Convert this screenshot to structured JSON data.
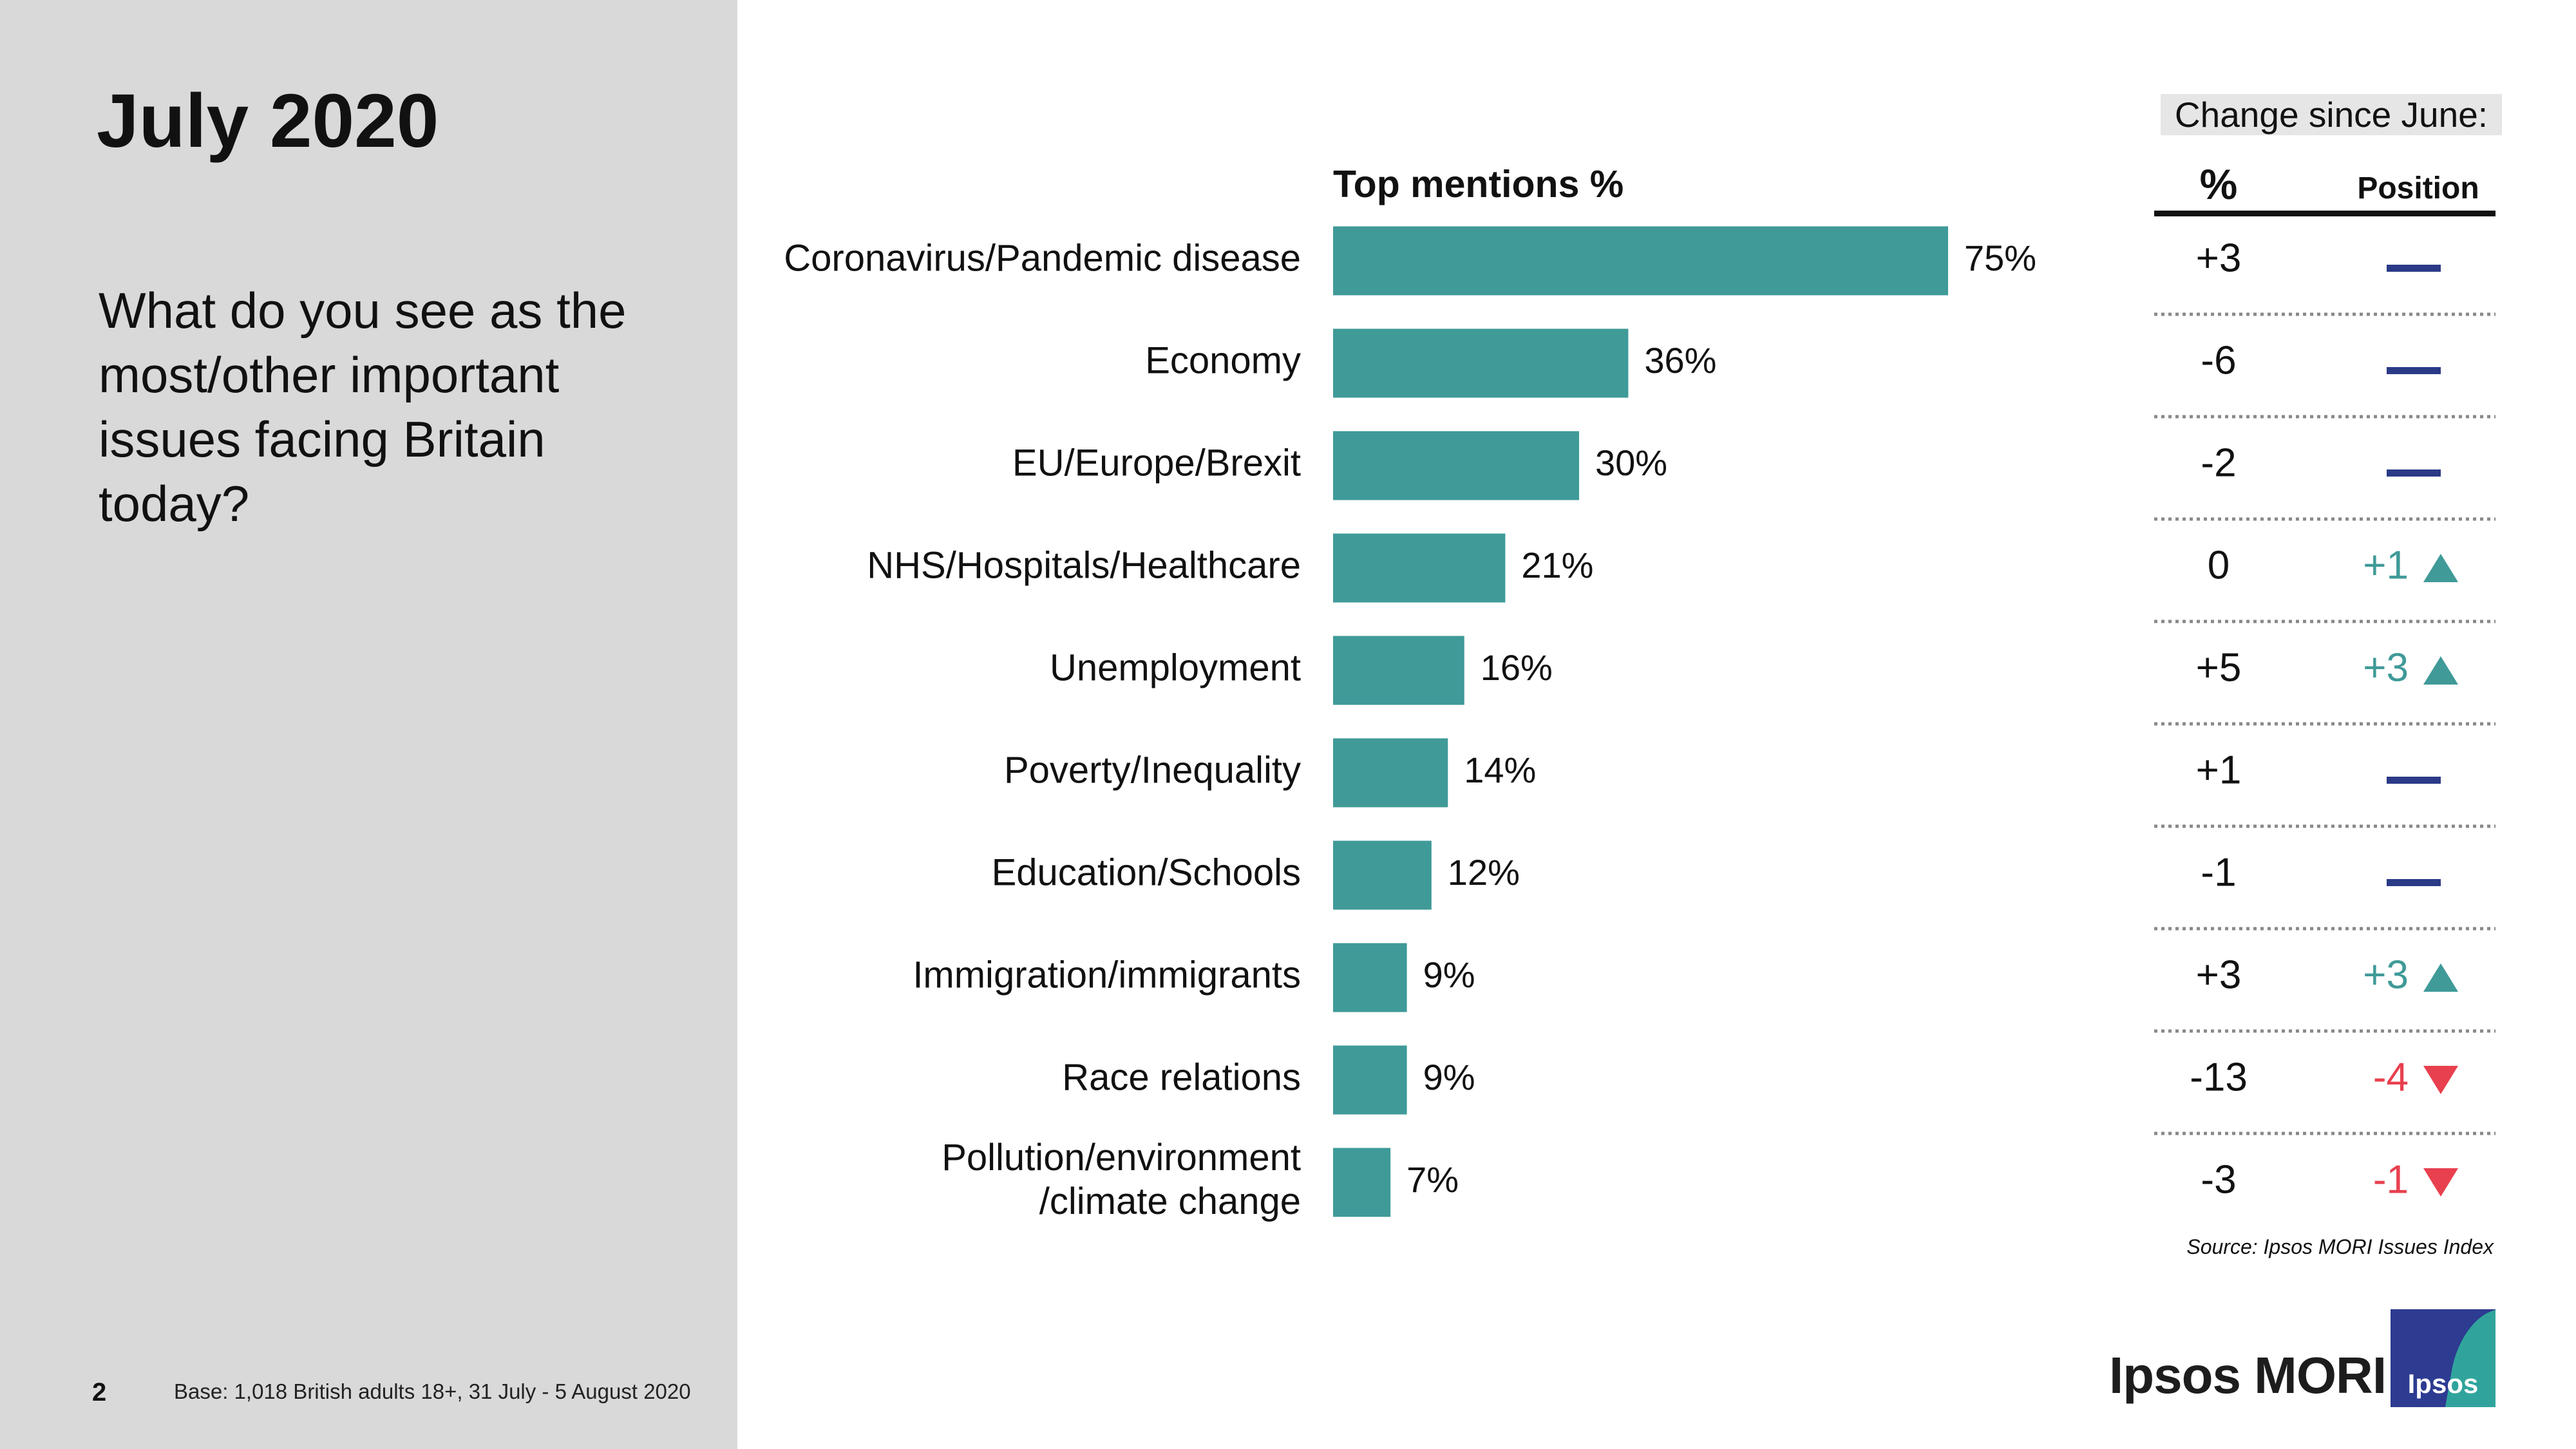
{
  "header": {
    "title": "July 2020",
    "question": "What do you see as the most/other important issues facing Britain today?"
  },
  "footer": {
    "page_number": "2",
    "base": "Base: 1,018 British adults 18+, 31 July - 5 August 2020",
    "source": "Source: Ipsos MORI Issues Index",
    "brand": "Ipsos MORI",
    "logo_text": "Ipsos"
  },
  "change_table": {
    "header": "Change since June:",
    "col_pct": "%",
    "col_position": "Position"
  },
  "colors": {
    "bar": "#3f9a98",
    "up": "#3f9a98",
    "down": "#e8404f",
    "no_change": "#2b3a87",
    "left_panel": "#d9d9d9"
  },
  "chart_data": {
    "type": "bar",
    "orientation": "horizontal",
    "title": "Top mentions %",
    "categories": [
      "Coronavirus/Pandemic disease",
      "Economy",
      "EU/Europe/Brexit",
      "NHS/Hospitals/Healthcare",
      "Unemployment",
      "Poverty/Inequality",
      "Education/Schools",
      "Immigration/immigrants",
      "Race relations",
      "Pollution/environment /climate change"
    ],
    "values": [
      75,
      36,
      30,
      21,
      16,
      14,
      12,
      9,
      9,
      7
    ],
    "value_labels": [
      "75%",
      "36%",
      "30%",
      "21%",
      "16%",
      "14%",
      "12%",
      "9%",
      "9%",
      "7%"
    ],
    "change_pct": [
      "+3",
      "-6",
      "-2",
      "0",
      "+5",
      "+1",
      "-1",
      "+3",
      "-13",
      "-3"
    ],
    "position_change": [
      {
        "text": "",
        "direction": "none"
      },
      {
        "text": "",
        "direction": "none"
      },
      {
        "text": "",
        "direction": "none"
      },
      {
        "text": "+1",
        "direction": "up"
      },
      {
        "text": "+3",
        "direction": "up"
      },
      {
        "text": "",
        "direction": "none"
      },
      {
        "text": "",
        "direction": "none"
      },
      {
        "text": "+3",
        "direction": "up"
      },
      {
        "text": "-4",
        "direction": "down"
      },
      {
        "text": "-1",
        "direction": "down"
      }
    ],
    "xlim": [
      0,
      75
    ]
  }
}
